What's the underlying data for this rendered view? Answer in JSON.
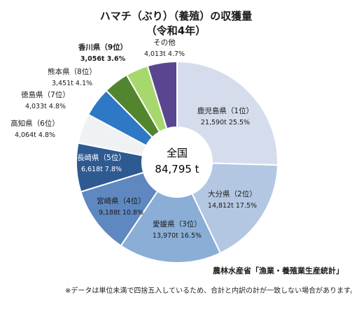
{
  "chart_data": {
    "type": "pie",
    "title": "ハマチ（ぶり）（養殖）の収獲量",
    "subtitle": "（令和4年）",
    "center_label": "全国",
    "center_value": "84,795 t",
    "slices": [
      {
        "name": "鹿児島県（1位）",
        "value_text": "21,590t 25.5%",
        "value": 21590,
        "percent": 25.5,
        "color": "#d5dded",
        "label_color": "#1a1a1a"
      },
      {
        "name": "大分県（2位）",
        "value_text": "14,812t 17.5%",
        "value": 14812,
        "percent": 17.5,
        "color": "#b3c7e2",
        "label_color": "#1a1a1a"
      },
      {
        "name": "愛媛県（3位）",
        "value_text": "13,970t 16.5%",
        "value": 13970,
        "percent": 16.5,
        "color": "#8aaed6",
        "label_color": "#1a1a1a"
      },
      {
        "name": "宮崎県（4位）",
        "value_text": "9,188t 10.8%",
        "value": 9188,
        "percent": 10.8,
        "color": "#5f88c0",
        "label_color": "#1a1a1a"
      },
      {
        "name": "長崎県（5位）",
        "value_text": "6,618t 7.8%",
        "value": 6618,
        "percent": 7.8,
        "color": "#2e5a92",
        "label_color": "#ffffff"
      },
      {
        "name": "高知県（6位）",
        "value_text": "4,064t 4.8%",
        "value": 4064,
        "percent": 4.8,
        "color": "#eff1f3",
        "label_color": "#1a1a1a"
      },
      {
        "name": "徳島県（7位）",
        "value_text": "4,033t 4.8%",
        "value": 4033,
        "percent": 4.8,
        "color": "#2e78c6",
        "label_color": "#1a1a1a"
      },
      {
        "name": "熊本県（8位）",
        "value_text": "3,451t 4.1%",
        "value": 3451,
        "percent": 4.1,
        "color": "#52852e",
        "label_color": "#1a1a1a"
      },
      {
        "name": "香川県（9位）",
        "value_text": "3,056t 3.6%",
        "value": 3056,
        "percent": 3.6,
        "color": "#a7d86d",
        "label_color": "#1a1a1a",
        "bold": true
      },
      {
        "name": "その他",
        "value_text": "4,013t 4.7%",
        "value": 4013,
        "percent": 4.7,
        "color": "#5a4690",
        "label_color": "#1a1a1a"
      }
    ]
  },
  "source": "農林水産省「漁業・養殖業生産統計」",
  "note": "※データは単位未満で四捨五入しているため、合計と内訳の計が一致しない場合があります。"
}
